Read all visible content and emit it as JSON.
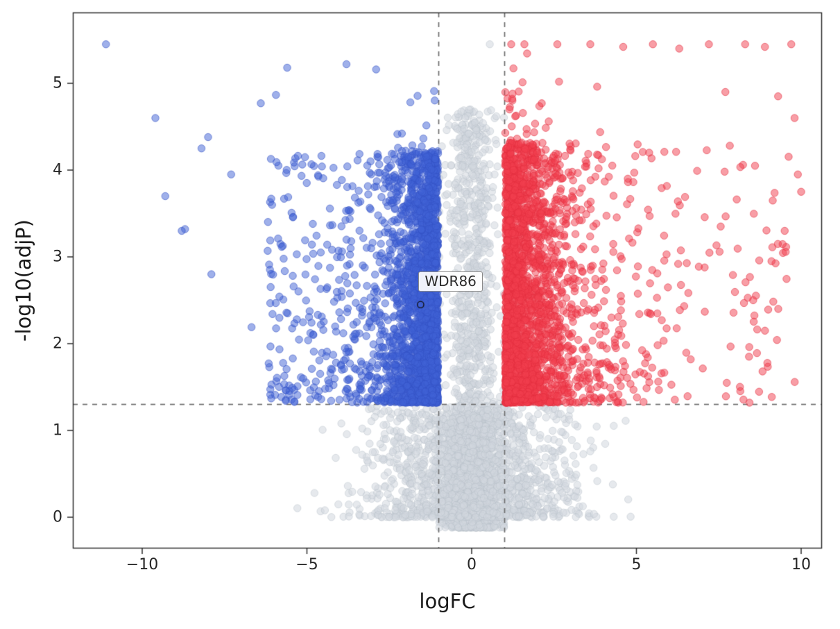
{
  "figure": {
    "kind": "volcano-plot",
    "background": "#ffffff"
  },
  "chart_data": {
    "type": "scatter",
    "title": "",
    "xlabel": "logFC",
    "ylabel": "-log10(adjP)",
    "xlim": [
      -12.1,
      10.65
    ],
    "ylim": [
      -0.36,
      5.82
    ],
    "x_ticks": [
      -10,
      -5,
      0,
      5,
      10
    ],
    "x_tick_labels": [
      "−10",
      "−5",
      "0",
      "5",
      "10"
    ],
    "y_ticks": [
      0,
      1,
      2,
      3,
      4,
      5
    ],
    "y_tick_labels": [
      "0",
      "1",
      "2",
      "3",
      "4",
      "5"
    ],
    "grid": false,
    "legend": "none",
    "threshold_lines": {
      "vertical_logfc": [
        -1,
        1
      ],
      "horizontal_neglog10p": 1.3,
      "style": "dashed",
      "color": "#6e6e6e"
    },
    "series": [
      {
        "name": "downregulated",
        "region": "logFC < -1 and -log10(adjP) > 1.3",
        "color": "rgba(64,97,214,0.50)",
        "edge_color": "rgba(52,82,196,0.60)",
        "approx_count": 2600
      },
      {
        "name": "not-significant",
        "region": "|logFC| < 1 or -log10(adjP) < 1.3",
        "color": "rgba(209,215,222,0.55)",
        "edge_color": "rgba(180,188,197,0.45)",
        "approx_count": 4000
      },
      {
        "name": "upregulated",
        "region": "logFC > 1 and -log10(adjP) > 1.3",
        "color": "rgba(242,62,77,0.50)",
        "edge_color": "rgba(226,45,62,0.60)",
        "approx_count": 2600
      }
    ],
    "annotations": [
      {
        "label": "WDR86",
        "x": -1.55,
        "y": 2.45,
        "marker": "open-circle"
      }
    ],
    "notable_points": {
      "down": [
        [
          -11.1,
          5.45
        ],
        [
          -9.6,
          4.6
        ],
        [
          -9.3,
          3.7
        ],
        [
          -8.7,
          3.32
        ],
        [
          -8.2,
          4.25
        ],
        [
          -7.9,
          2.8
        ],
        [
          -5.6,
          5.18
        ],
        [
          -3.8,
          5.22
        ],
        [
          -2.9,
          5.16
        ],
        [
          -6.4,
          4.77
        ],
        [
          -8.0,
          4.38
        ],
        [
          -8.8,
          3.3
        ],
        [
          -7.3,
          3.95
        ]
      ],
      "up": [
        [
          9.7,
          5.45
        ],
        [
          9.9,
          3.95
        ],
        [
          9.3,
          4.85
        ],
        [
          8.9,
          5.42
        ],
        [
          10.0,
          3.75
        ],
        [
          9.5,
          3.3
        ],
        [
          8.3,
          5.45
        ],
        [
          7.2,
          5.45
        ],
        [
          6.3,
          5.4
        ],
        [
          5.5,
          5.45
        ],
        [
          4.6,
          5.42
        ],
        [
          3.6,
          5.45
        ],
        [
          2.6,
          5.45
        ],
        [
          1.6,
          5.45
        ],
        [
          1.2,
          5.45
        ],
        [
          9.1,
          2.95
        ],
        [
          8.6,
          4.05
        ],
        [
          9.8,
          4.6
        ],
        [
          7.7,
          4.9
        ]
      ],
      "not_significant": [
        [
          0.55,
          5.45
        ],
        [
          0.75,
          4.62
        ],
        [
          -0.2,
          4.6
        ],
        [
          0.1,
          4.55
        ]
      ]
    },
    "point_style": {
      "radius_px": 5.2,
      "opacity": 0.5
    }
  }
}
